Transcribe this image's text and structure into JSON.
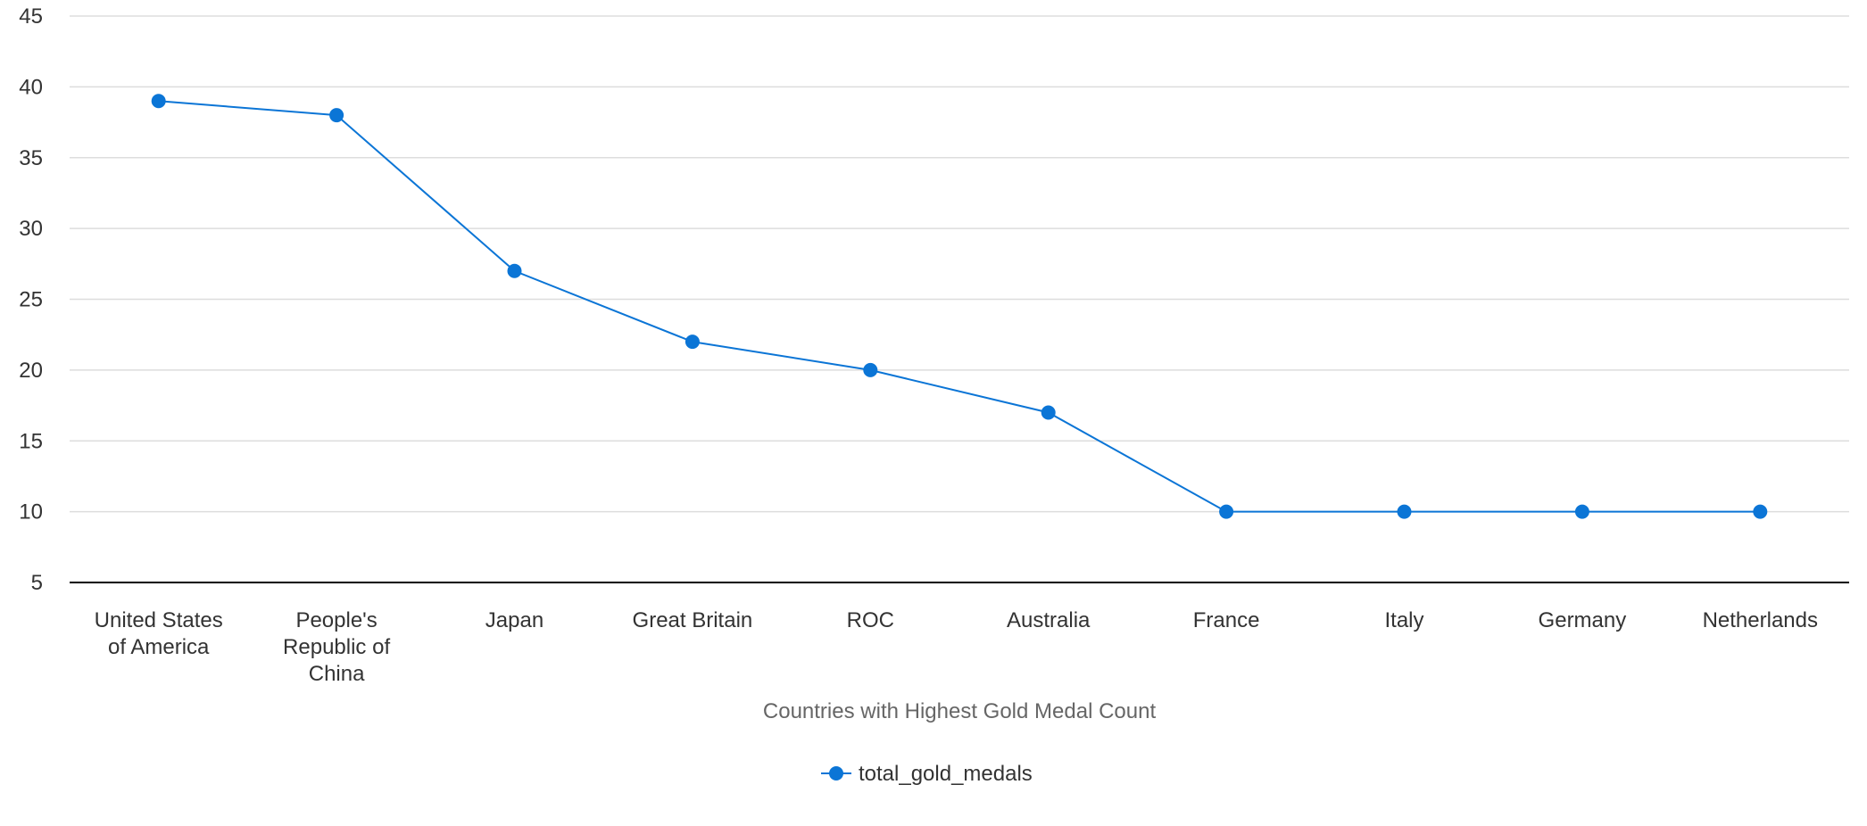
{
  "chart_data": {
    "type": "line",
    "categories": [
      "United States of America",
      "People's Republic of China",
      "Japan",
      "Great Britain",
      "ROC",
      "Australia",
      "France",
      "Italy",
      "Germany",
      "Netherlands"
    ],
    "category_lines": [
      [
        "United States",
        "of America"
      ],
      [
        "People's",
        "Republic of",
        "China"
      ],
      [
        "Japan"
      ],
      [
        "Great Britain"
      ],
      [
        "ROC"
      ],
      [
        "Australia"
      ],
      [
        "France"
      ],
      [
        "Italy"
      ],
      [
        "Germany"
      ],
      [
        "Netherlands"
      ]
    ],
    "series": [
      {
        "name": "total_gold_medals",
        "values": [
          39,
          38,
          27,
          22,
          20,
          17,
          10,
          10,
          10,
          10
        ]
      }
    ],
    "xlabel": "Countries with Highest Gold Medal Count",
    "ylabel": "",
    "ylim": [
      5,
      45
    ],
    "yticks": [
      5,
      10,
      15,
      20,
      25,
      30,
      35,
      40,
      45
    ],
    "grid": true,
    "legend_position": "bottom-center",
    "colors": {
      "series": "#0b75d6",
      "grid": "#dddddd",
      "axis": "#000000",
      "tick_text": "#333333",
      "axis_title": "#666666"
    }
  }
}
